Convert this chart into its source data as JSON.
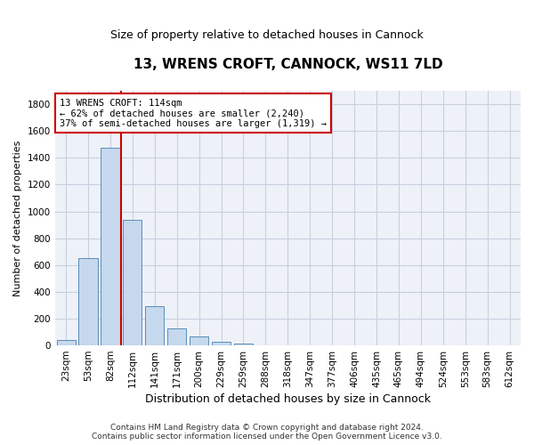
{
  "title": "13, WRENS CROFT, CANNOCK, WS11 7LD",
  "subtitle": "Size of property relative to detached houses in Cannock",
  "xlabel": "Distribution of detached houses by size in Cannock",
  "ylabel": "Number of detached properties",
  "categories": [
    "23sqm",
    "53sqm",
    "82sqm",
    "112sqm",
    "141sqm",
    "171sqm",
    "200sqm",
    "229sqm",
    "259sqm",
    "288sqm",
    "318sqm",
    "347sqm",
    "377sqm",
    "406sqm",
    "435sqm",
    "465sqm",
    "494sqm",
    "524sqm",
    "553sqm",
    "583sqm",
    "612sqm"
  ],
  "values": [
    40,
    650,
    1475,
    935,
    290,
    125,
    65,
    25,
    15,
    0,
    0,
    0,
    0,
    0,
    0,
    0,
    0,
    0,
    0,
    0,
    0
  ],
  "bar_color": "#c5d8ed",
  "bar_edge_color": "#5b8db8",
  "vline_x_pos": 2.5,
  "vline_color": "#cc0000",
  "annotation_line1": "13 WRENS CROFT: 114sqm",
  "annotation_line2": "← 62% of detached houses are smaller (2,240)",
  "annotation_line3": "37% of semi-detached houses are larger (1,319) →",
  "annotation_box_color": "#cc0000",
  "ylim": [
    0,
    1900
  ],
  "yticks": [
    0,
    200,
    400,
    600,
    800,
    1000,
    1200,
    1400,
    1600,
    1800
  ],
  "footer_line1": "Contains HM Land Registry data © Crown copyright and database right 2024.",
  "footer_line2": "Contains public sector information licensed under the Open Government Licence v3.0.",
  "bg_color": "#eef2f8",
  "grid_color": "#c8cfe0",
  "title_fontsize": 11,
  "subtitle_fontsize": 9,
  "ylabel_fontsize": 8,
  "xlabel_fontsize": 9,
  "tick_fontsize": 7.5,
  "footer_fontsize": 6.5
}
